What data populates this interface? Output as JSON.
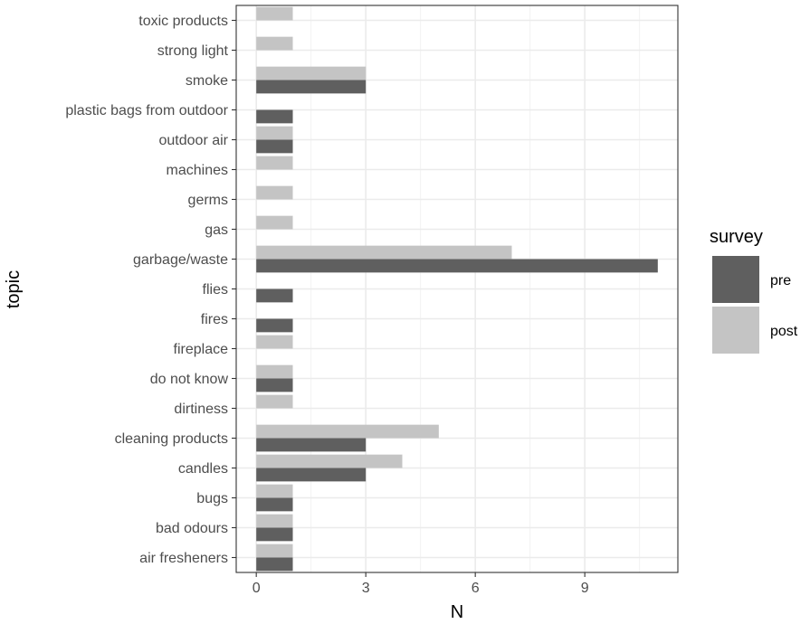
{
  "chart_data": {
    "type": "bar",
    "orientation": "horizontal",
    "categories": [
      "air fresheners",
      "bad odours",
      "bugs",
      "candles",
      "cleaning products",
      "dirtiness",
      "do not know",
      "fireplace",
      "fires",
      "flies",
      "garbage/waste",
      "gas",
      "germs",
      "machines",
      "outdoor air",
      "plastic bags from outdoor",
      "smoke",
      "strong light",
      "toxic products"
    ],
    "series": [
      {
        "name": "pre",
        "color": "#5f5f5f",
        "values": [
          1,
          1,
          1,
          3,
          3,
          0,
          1,
          0,
          1,
          1,
          11,
          0,
          0,
          0,
          1,
          1,
          3,
          0,
          0
        ]
      },
      {
        "name": "post",
        "color": "#c4c4c4",
        "values": [
          1,
          1,
          1,
          4,
          5,
          1,
          1,
          1,
          0,
          0,
          7,
          1,
          1,
          1,
          1,
          0,
          3,
          1,
          1
        ]
      }
    ],
    "xlabel": "N",
    "ylabel": "topic",
    "xlim": [
      -0.55,
      11.55
    ],
    "xticks": [
      0,
      3,
      6,
      9
    ],
    "xtick_labels": [
      "0",
      "3",
      "6",
      "9"
    ],
    "legend_title": "survey",
    "legend_position": "right",
    "grid": true
  }
}
